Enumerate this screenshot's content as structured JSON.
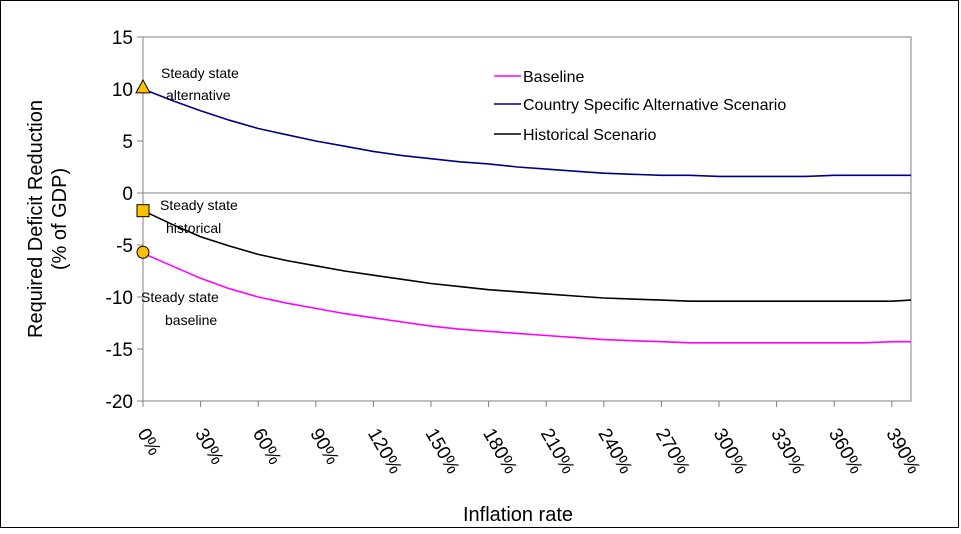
{
  "chart_data": {
    "type": "line",
    "xlabel": "Inflation rate",
    "ylabel_line1": "Required Deficit Reduction",
    "ylabel_line2": "(% of GDP)",
    "xlim": [
      0,
      400
    ],
    "ylim": [
      -20,
      15
    ],
    "y_ticks": [
      15,
      10,
      5,
      0,
      -5,
      -10,
      -15,
      -20
    ],
    "x_ticks": [
      0,
      30,
      60,
      90,
      120,
      150,
      180,
      210,
      240,
      270,
      300,
      330,
      360,
      390
    ],
    "x_tick_labels": [
      "0%",
      "30%",
      "60%",
      "90%",
      "120%",
      "150%",
      "180%",
      "210%",
      "240%",
      "270%",
      "300%",
      "330%",
      "360%",
      "390%"
    ],
    "grid": false,
    "legend_position": "top-center",
    "series": [
      {
        "name": "Baseline",
        "color": "#ff00ff",
        "x": [
          0,
          15,
          30,
          45,
          60,
          75,
          90,
          105,
          120,
          135,
          150,
          165,
          180,
          195,
          210,
          225,
          240,
          255,
          270,
          285,
          300,
          315,
          330,
          345,
          360,
          375,
          390,
          400
        ],
        "y": [
          -5.8,
          -7.0,
          -8.2,
          -9.2,
          -10.0,
          -10.6,
          -11.1,
          -11.6,
          -12.0,
          -12.4,
          -12.8,
          -13.1,
          -13.3,
          -13.5,
          -13.7,
          -13.9,
          -14.1,
          -14.2,
          -14.3,
          -14.4,
          -14.4,
          -14.4,
          -14.4,
          -14.4,
          -14.4,
          -14.4,
          -14.3,
          -14.3
        ]
      },
      {
        "name": "Country Specific Alternative Scenario",
        "color": "#000080",
        "x": [
          0,
          15,
          30,
          45,
          60,
          75,
          90,
          105,
          120,
          135,
          150,
          165,
          180,
          195,
          210,
          225,
          240,
          255,
          270,
          285,
          300,
          315,
          330,
          345,
          360,
          375,
          390,
          400
        ],
        "y": [
          10.0,
          8.9,
          7.9,
          7.0,
          6.2,
          5.6,
          5.0,
          4.5,
          4.0,
          3.6,
          3.3,
          3.0,
          2.8,
          2.5,
          2.3,
          2.1,
          1.9,
          1.8,
          1.7,
          1.7,
          1.6,
          1.6,
          1.6,
          1.6,
          1.7,
          1.7,
          1.7,
          1.7
        ]
      },
      {
        "name": "Historical Scenario",
        "color": "#000000",
        "x": [
          0,
          15,
          30,
          45,
          60,
          75,
          90,
          105,
          120,
          135,
          150,
          165,
          180,
          195,
          210,
          225,
          240,
          255,
          270,
          285,
          300,
          315,
          330,
          345,
          360,
          375,
          390,
          400
        ],
        "y": [
          -1.7,
          -3.0,
          -4.2,
          -5.1,
          -5.9,
          -6.5,
          -7.0,
          -7.5,
          -7.9,
          -8.3,
          -8.7,
          -9.0,
          -9.3,
          -9.5,
          -9.7,
          -9.9,
          -10.1,
          -10.2,
          -10.3,
          -10.4,
          -10.4,
          -10.4,
          -10.4,
          -10.4,
          -10.4,
          -10.4,
          -10.4,
          -10.3
        ]
      }
    ],
    "markers": [
      {
        "shape": "triangle",
        "x": 0,
        "y": 10.2,
        "color": "#ffc000",
        "label_line1": "Steady state",
        "label_line2": "alternative"
      },
      {
        "shape": "square",
        "x": 0,
        "y": -1.7,
        "color": "#ffc000",
        "label_line1": "Steady state",
        "label_line2": "historical"
      },
      {
        "shape": "circle",
        "x": 0,
        "y": -5.7,
        "color": "#ffc000",
        "label_line1": "Steady state",
        "label_line2": "baseline"
      }
    ]
  }
}
